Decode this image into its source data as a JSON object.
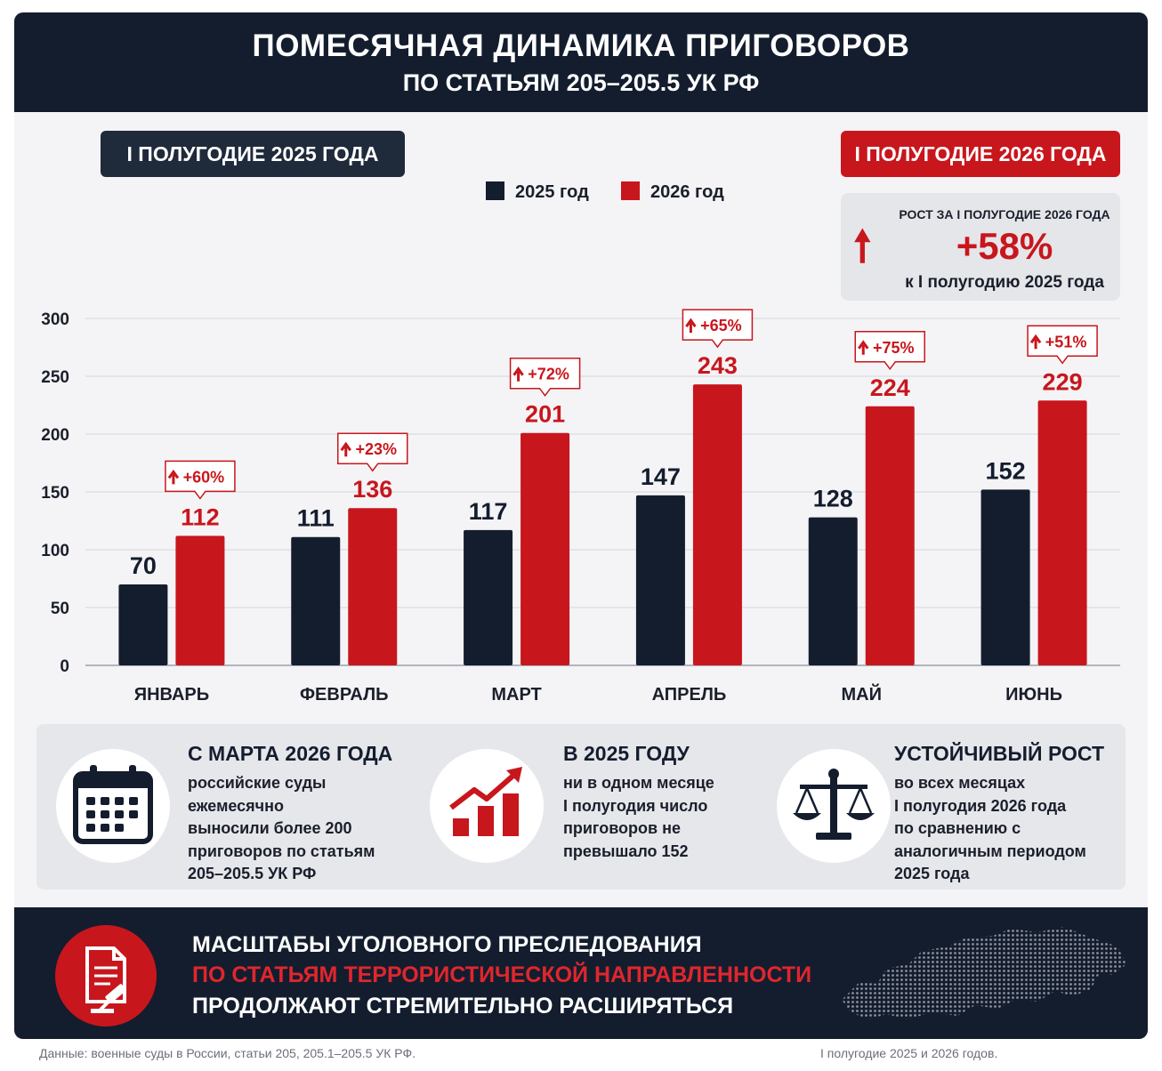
{
  "header": {
    "title": "ПОМЕСЯЧНАЯ ДИНАМИКА ПРИГОВОРОВ",
    "subtitle": "ПО СТАТЬЯМ 205–205.5 УК РФ"
  },
  "period_left": "I ПОЛУГОДИЕ 2025 ГОДА",
  "period_right": "I ПОЛУГОДИЕ 2026 ГОДА",
  "growth_box": {
    "label": "РОСТ ЗА I ПОЛУГОДИЕ 2026 ГОДА",
    "value": "+58%",
    "note": "к I полугодию 2025 года"
  },
  "colors": {
    "dark": "#141d2e",
    "red": "#c8161d"
  },
  "chart_data": {
    "type": "bar",
    "categories": [
      "ЯНВАРЬ",
      "ФЕВРАЛЬ",
      "МАРТ",
      "АПРЕЛЬ",
      "МАЙ",
      "ИЮНЬ"
    ],
    "series": [
      {
        "name": "2025 год",
        "color": "#141d2e",
        "values": [
          70,
          111,
          117,
          147,
          128,
          152
        ]
      },
      {
        "name": "2026 год",
        "color": "#c8161d",
        "values": [
          112,
          136,
          201,
          243,
          224,
          229
        ]
      }
    ],
    "change_labels": [
      "+60%",
      "+23%",
      "+72%",
      "+65%",
      "+75%",
      "+51%"
    ],
    "y_ticks": [
      0,
      50,
      100,
      150,
      200,
      250,
      300
    ],
    "ylim": [
      0,
      300
    ],
    "grid": true,
    "legend_position": "top-center"
  },
  "facts": [
    {
      "icon": "calendar-icon",
      "title": "С МАРТА 2026 ГОДА",
      "lines": [
        "российские суды ежемесячно",
        "выносили более 200",
        "приговоров по статьям",
        "205–205.5 УК РФ"
      ]
    },
    {
      "icon": "growth-chart-icon",
      "title": "В 2025 ГОДУ",
      "lines": [
        "ни в одном месяце",
        "I полугодия число",
        "приговоров не",
        "превышало 152"
      ]
    },
    {
      "icon": "scales-icon",
      "title": "УСТОЙЧИВЫЙ РОСТ",
      "lines": [
        "во всех месяцах",
        "I полугодия 2026 года",
        "по сравнению с",
        "аналогичным периодом",
        "2025 года"
      ]
    }
  ],
  "footer": {
    "line1": "МАСШТАБЫ УГОЛОВНОГО ПРЕСЛЕДОВАНИЯ",
    "line2": "ПО СТАТЬЯМ ТЕРРОРИСТИЧЕСКОЙ НАПРАВЛЕННОСТИ",
    "line3": "ПРОДОЛЖАЮТ СТРЕМИТЕЛЬНО РАСШИРЯТЬСЯ"
  },
  "source": {
    "left": "Данные: военные суды в России, статьи 205, 205.1–205.5 УК РФ.",
    "right": "I полугодие 2025 и 2026 годов."
  }
}
